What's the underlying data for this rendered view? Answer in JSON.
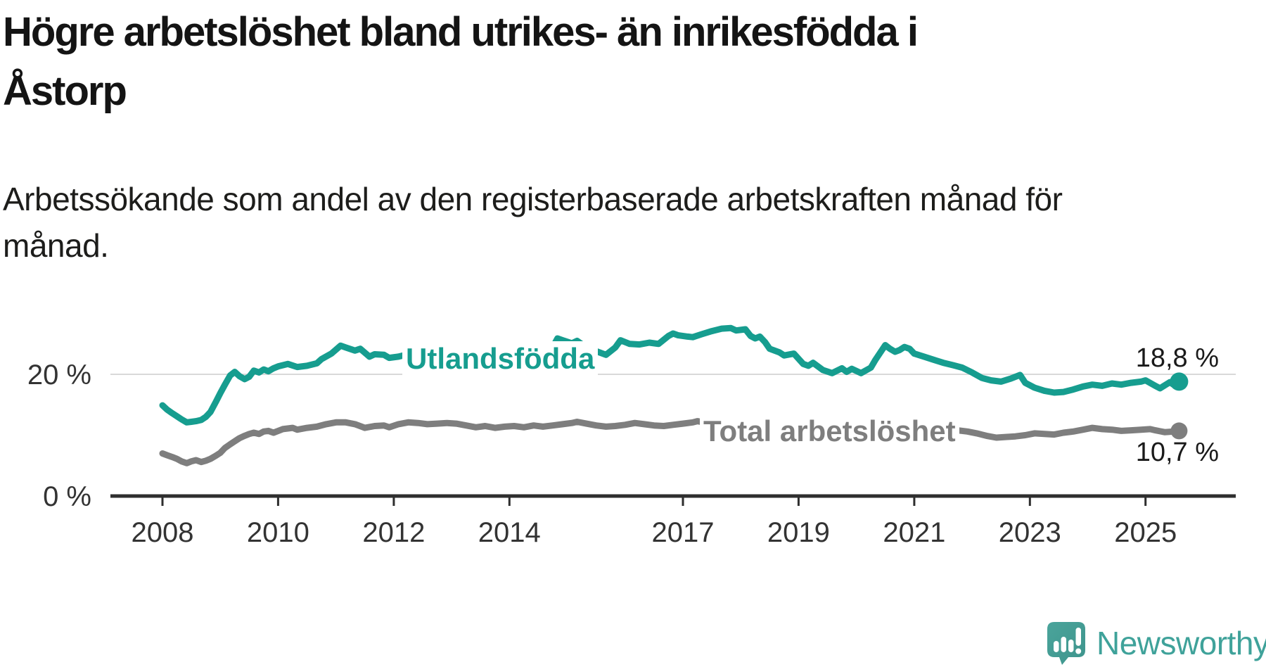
{
  "header": {
    "title_lines": [
      "Högre arbetslöshet bland utrikes- än inrikesfödda i",
      "Åstorp"
    ],
    "subtitle_lines": [
      "Arbetssökande som andel av den registerbaserade arbetskraften månad för",
      "månad."
    ]
  },
  "chart_data": {
    "type": "line",
    "title": "Högre arbetslöshet bland utrikes- än inrikesfödda i Åstorp",
    "subtitle": "Arbetssökande som andel av den registerbaserade arbetskraften månad för månad.",
    "unit": "%",
    "grid": "y-only",
    "legend_position": "inline-labels",
    "xlim": [
      2007.1,
      2026.56
    ],
    "ylim": [
      0,
      30
    ],
    "x_ticks": [
      {
        "year": 2008,
        "label": "2008"
      },
      {
        "year": 2010,
        "label": "2010"
      },
      {
        "year": 2012,
        "label": "2012"
      },
      {
        "year": 2014,
        "label": "2014"
      },
      {
        "year": 2017,
        "label": "2017"
      },
      {
        "year": 2019,
        "label": "2019"
      },
      {
        "year": 2021,
        "label": "2021"
      },
      {
        "year": 2023,
        "label": "2023"
      },
      {
        "year": 2025,
        "label": "2025"
      }
    ],
    "y_ticks": [
      {
        "value": 20,
        "label": "20 %",
        "gridline": true
      },
      {
        "value": 0,
        "label": "0 %",
        "gridline": false
      }
    ],
    "series": [
      {
        "name": "Utlandsfödda",
        "color": "#169d8f",
        "end_label": "18,8 %",
        "end_value": 18.8,
        "points": [
          [
            2008.0,
            14.9
          ],
          [
            2008.08,
            14.2
          ],
          [
            2008.17,
            13.6
          ],
          [
            2008.25,
            13.1
          ],
          [
            2008.33,
            12.6
          ],
          [
            2008.42,
            12.1
          ],
          [
            2008.5,
            12.2
          ],
          [
            2008.58,
            12.3
          ],
          [
            2008.67,
            12.5
          ],
          [
            2008.75,
            13.0
          ],
          [
            2008.83,
            13.8
          ],
          [
            2008.92,
            15.4
          ],
          [
            2009.0,
            16.9
          ],
          [
            2009.08,
            18.3
          ],
          [
            2009.17,
            19.8
          ],
          [
            2009.25,
            20.4
          ],
          [
            2009.33,
            19.7
          ],
          [
            2009.42,
            19.2
          ],
          [
            2009.5,
            19.6
          ],
          [
            2009.58,
            20.6
          ],
          [
            2009.67,
            20.3
          ],
          [
            2009.75,
            20.8
          ],
          [
            2009.83,
            20.5
          ],
          [
            2009.92,
            21.0
          ],
          [
            2010.0,
            21.3
          ],
          [
            2010.17,
            21.7
          ],
          [
            2010.33,
            21.2
          ],
          [
            2010.5,
            21.4
          ],
          [
            2010.67,
            21.8
          ],
          [
            2010.75,
            22.5
          ],
          [
            2010.92,
            23.4
          ],
          [
            2011.08,
            24.7
          ],
          [
            2011.17,
            24.4
          ],
          [
            2011.33,
            23.9
          ],
          [
            2011.42,
            24.2
          ],
          [
            2011.58,
            22.9
          ],
          [
            2011.67,
            23.3
          ],
          [
            2011.83,
            23.2
          ],
          [
            2011.92,
            22.7
          ],
          [
            2012.08,
            22.9
          ],
          [
            2012.25,
            23.3
          ],
          [
            2012.42,
            22.8
          ],
          [
            2012.58,
            22.6
          ],
          [
            2012.75,
            22.9
          ],
          [
            2012.92,
            23.0
          ],
          [
            2013.08,
            22.7
          ],
          [
            2013.25,
            22.3
          ],
          [
            2013.42,
            22.0
          ],
          [
            2013.58,
            22.3
          ],
          [
            2013.75,
            22.1
          ],
          [
            2013.92,
            22.6
          ],
          [
            2014.08,
            22.9
          ],
          [
            2014.25,
            23.1
          ],
          [
            2014.42,
            23.5
          ],
          [
            2014.58,
            23.3
          ],
          [
            2014.75,
            24.5
          ],
          [
            2014.83,
            25.9
          ],
          [
            2014.92,
            25.6
          ],
          [
            2015.08,
            25.1
          ],
          [
            2015.17,
            25.5
          ],
          [
            2015.33,
            24.4
          ],
          [
            2015.5,
            23.8
          ],
          [
            2015.67,
            23.2
          ],
          [
            2015.83,
            24.4
          ],
          [
            2015.92,
            25.6
          ],
          [
            2016.08,
            25.0
          ],
          [
            2016.25,
            24.9
          ],
          [
            2016.42,
            25.2
          ],
          [
            2016.58,
            25.0
          ],
          [
            2016.75,
            26.3
          ],
          [
            2016.83,
            26.7
          ],
          [
            2016.92,
            26.4
          ],
          [
            2017.08,
            26.2
          ],
          [
            2017.17,
            26.1
          ],
          [
            2017.33,
            26.6
          ],
          [
            2017.5,
            27.1
          ],
          [
            2017.67,
            27.5
          ],
          [
            2017.83,
            27.6
          ],
          [
            2017.92,
            27.2
          ],
          [
            2018.0,
            27.3
          ],
          [
            2018.08,
            27.4
          ],
          [
            2018.17,
            26.3
          ],
          [
            2018.25,
            25.9
          ],
          [
            2018.33,
            26.2
          ],
          [
            2018.42,
            25.3
          ],
          [
            2018.5,
            24.2
          ],
          [
            2018.67,
            23.6
          ],
          [
            2018.75,
            23.1
          ],
          [
            2018.92,
            23.4
          ],
          [
            2019.08,
            21.7
          ],
          [
            2019.17,
            21.4
          ],
          [
            2019.25,
            21.9
          ],
          [
            2019.42,
            20.7
          ],
          [
            2019.58,
            20.2
          ],
          [
            2019.75,
            21.0
          ],
          [
            2019.83,
            20.4
          ],
          [
            2019.92,
            20.9
          ],
          [
            2020.08,
            20.2
          ],
          [
            2020.25,
            21.1
          ],
          [
            2020.33,
            22.4
          ],
          [
            2020.5,
            24.8
          ],
          [
            2020.58,
            24.2
          ],
          [
            2020.67,
            23.7
          ],
          [
            2020.75,
            24.0
          ],
          [
            2020.83,
            24.5
          ],
          [
            2020.92,
            24.2
          ],
          [
            2021.0,
            23.4
          ],
          [
            2021.17,
            22.9
          ],
          [
            2021.33,
            22.4
          ],
          [
            2021.5,
            21.9
          ],
          [
            2021.67,
            21.5
          ],
          [
            2021.83,
            21.1
          ],
          [
            2022.0,
            20.3
          ],
          [
            2022.17,
            19.4
          ],
          [
            2022.33,
            19.0
          ],
          [
            2022.5,
            18.8
          ],
          [
            2022.67,
            19.3
          ],
          [
            2022.83,
            19.9
          ],
          [
            2022.92,
            18.6
          ],
          [
            2023.08,
            17.8
          ],
          [
            2023.25,
            17.3
          ],
          [
            2023.42,
            17.0
          ],
          [
            2023.58,
            17.1
          ],
          [
            2023.75,
            17.5
          ],
          [
            2023.92,
            18.0
          ],
          [
            2024.08,
            18.3
          ],
          [
            2024.25,
            18.1
          ],
          [
            2024.42,
            18.5
          ],
          [
            2024.58,
            18.3
          ],
          [
            2024.75,
            18.6
          ],
          [
            2024.92,
            18.8
          ],
          [
            2025.0,
            19.0
          ],
          [
            2025.17,
            18.1
          ],
          [
            2025.25,
            17.7
          ],
          [
            2025.42,
            18.7
          ],
          [
            2025.5,
            18.2
          ],
          [
            2025.58,
            18.8
          ]
        ]
      },
      {
        "name": "Total arbetslöshet",
        "color": "#7e7e7e",
        "end_label": "10,7 %",
        "end_value": 10.7,
        "points": [
          [
            2008.0,
            7.0
          ],
          [
            2008.08,
            6.7
          ],
          [
            2008.17,
            6.4
          ],
          [
            2008.25,
            6.1
          ],
          [
            2008.33,
            5.7
          ],
          [
            2008.42,
            5.4
          ],
          [
            2008.5,
            5.7
          ],
          [
            2008.58,
            5.9
          ],
          [
            2008.67,
            5.6
          ],
          [
            2008.75,
            5.8
          ],
          [
            2008.83,
            6.1
          ],
          [
            2008.92,
            6.6
          ],
          [
            2009.0,
            7.1
          ],
          [
            2009.08,
            7.9
          ],
          [
            2009.17,
            8.5
          ],
          [
            2009.25,
            9.0
          ],
          [
            2009.33,
            9.5
          ],
          [
            2009.42,
            9.9
          ],
          [
            2009.5,
            10.2
          ],
          [
            2009.58,
            10.4
          ],
          [
            2009.67,
            10.2
          ],
          [
            2009.75,
            10.6
          ],
          [
            2009.83,
            10.7
          ],
          [
            2009.92,
            10.4
          ],
          [
            2010.08,
            11.0
          ],
          [
            2010.25,
            11.2
          ],
          [
            2010.33,
            10.9
          ],
          [
            2010.5,
            11.2
          ],
          [
            2010.67,
            11.4
          ],
          [
            2010.83,
            11.8
          ],
          [
            2011.0,
            12.1
          ],
          [
            2011.17,
            12.1
          ],
          [
            2011.33,
            11.8
          ],
          [
            2011.5,
            11.2
          ],
          [
            2011.67,
            11.5
          ],
          [
            2011.83,
            11.6
          ],
          [
            2011.92,
            11.3
          ],
          [
            2012.08,
            11.8
          ],
          [
            2012.25,
            12.1
          ],
          [
            2012.42,
            12.0
          ],
          [
            2012.58,
            11.8
          ],
          [
            2012.75,
            11.9
          ],
          [
            2012.92,
            12.0
          ],
          [
            2013.08,
            11.9
          ],
          [
            2013.25,
            11.6
          ],
          [
            2013.42,
            11.3
          ],
          [
            2013.58,
            11.5
          ],
          [
            2013.75,
            11.2
          ],
          [
            2013.92,
            11.4
          ],
          [
            2014.08,
            11.5
          ],
          [
            2014.25,
            11.3
          ],
          [
            2014.42,
            11.6
          ],
          [
            2014.58,
            11.4
          ],
          [
            2014.75,
            11.6
          ],
          [
            2014.92,
            11.8
          ],
          [
            2015.08,
            12.0
          ],
          [
            2015.17,
            12.2
          ],
          [
            2015.33,
            11.9
          ],
          [
            2015.5,
            11.6
          ],
          [
            2015.67,
            11.4
          ],
          [
            2015.83,
            11.5
          ],
          [
            2016.0,
            11.7
          ],
          [
            2016.17,
            12.0
          ],
          [
            2016.33,
            11.8
          ],
          [
            2016.5,
            11.6
          ],
          [
            2016.67,
            11.5
          ],
          [
            2016.83,
            11.7
          ],
          [
            2017.0,
            11.9
          ],
          [
            2017.17,
            12.1
          ],
          [
            2017.25,
            12.3
          ],
          [
            2017.42,
            12.0
          ],
          [
            2017.58,
            11.8
          ],
          [
            2017.75,
            11.7
          ],
          [
            2017.92,
            11.9
          ],
          [
            2018.08,
            11.8
          ],
          [
            2018.25,
            11.5
          ],
          [
            2018.42,
            11.3
          ],
          [
            2018.58,
            11.4
          ],
          [
            2018.75,
            11.2
          ],
          [
            2018.92,
            11.3
          ],
          [
            2019.08,
            11.4
          ],
          [
            2019.25,
            11.1
          ],
          [
            2019.42,
            10.9
          ],
          [
            2019.58,
            11.0
          ],
          [
            2019.75,
            10.8
          ],
          [
            2019.92,
            10.9
          ],
          [
            2020.08,
            11.2
          ],
          [
            2020.25,
            11.8
          ],
          [
            2020.42,
            12.1
          ],
          [
            2020.58,
            12.0
          ],
          [
            2020.75,
            11.8
          ],
          [
            2020.92,
            11.6
          ],
          [
            2021.08,
            11.5
          ],
          [
            2021.25,
            11.3
          ],
          [
            2021.42,
            11.1
          ],
          [
            2021.58,
            11.0
          ],
          [
            2021.75,
            10.8
          ],
          [
            2021.92,
            10.6
          ],
          [
            2022.08,
            10.3
          ],
          [
            2022.25,
            9.9
          ],
          [
            2022.42,
            9.6
          ],
          [
            2022.58,
            9.7
          ],
          [
            2022.75,
            9.8
          ],
          [
            2022.92,
            10.0
          ],
          [
            2023.08,
            10.3
          ],
          [
            2023.25,
            10.2
          ],
          [
            2023.42,
            10.1
          ],
          [
            2023.58,
            10.4
          ],
          [
            2023.75,
            10.6
          ],
          [
            2023.92,
            10.9
          ],
          [
            2024.08,
            11.2
          ],
          [
            2024.25,
            11.0
          ],
          [
            2024.42,
            10.9
          ],
          [
            2024.58,
            10.7
          ],
          [
            2024.75,
            10.8
          ],
          [
            2024.92,
            10.9
          ],
          [
            2025.08,
            11.0
          ],
          [
            2025.17,
            10.8
          ],
          [
            2025.33,
            10.5
          ],
          [
            2025.5,
            10.6
          ],
          [
            2025.58,
            10.7
          ]
        ]
      }
    ],
    "colors": {
      "foreign_born_line": "#169d8f",
      "total_line": "#7e7e7e",
      "axis": "#2e2e2e",
      "gridline": "#d9d9d9",
      "tick_label": "#333333",
      "value_label": "#1a1a1a",
      "brand_teal": "#3fa29a"
    }
  },
  "footer": {
    "brand": "Newsworthy"
  }
}
